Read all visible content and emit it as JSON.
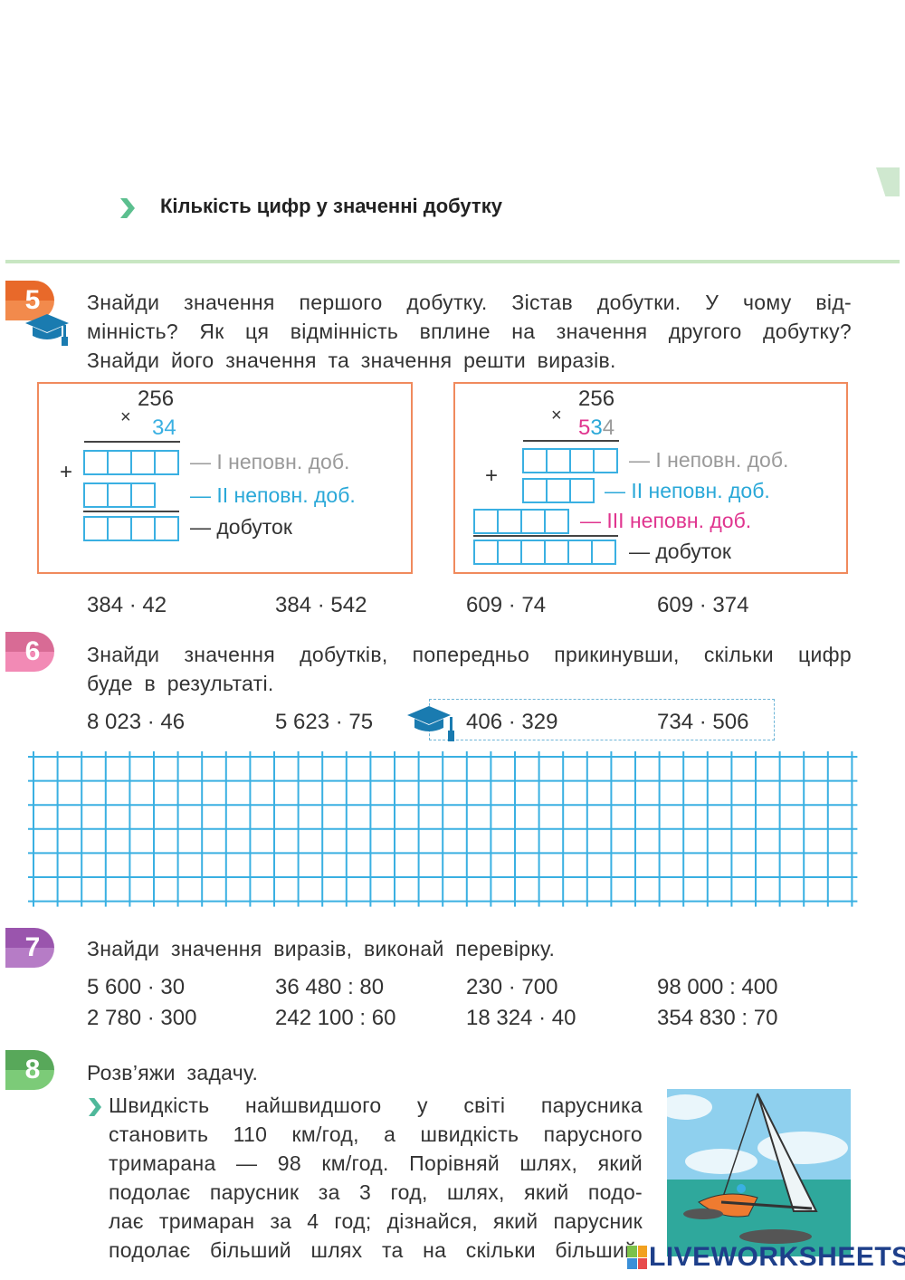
{
  "section_title": "Кількість цифр у значенні добутку",
  "colors": {
    "accent_green": "#5cbf8f",
    "grid": "#3ab0e2",
    "box_border": "#f08a5d",
    "pink": "#e0358f",
    "cyan": "#2aa8d8",
    "gray": "#9a9a9a"
  },
  "tasks": {
    "t5": {
      "number": "5",
      "badge_color": "#ef7b30",
      "text_lines": [
        "Знайди значення першого добутку. Зістав добутки. У чому від-",
        "мінність? Як ця відмінність вплине на значення другого добутку?",
        "Знайди його значення та значення решти виразів."
      ],
      "left": {
        "multiplicand": "256",
        "times": "×",
        "multiplier": "34",
        "plus": "+",
        "labels": [
          "— І неповн. доб.",
          "— ІІ неповн. доб.",
          "— добуток"
        ]
      },
      "right": {
        "multiplicand": "256",
        "times": "×",
        "multiplier_digits": [
          "5",
          "3",
          "4"
        ],
        "plus": "+",
        "labels": [
          "— І неповн. доб.",
          "— ІІ неповн. доб.",
          "— ІІІ неповн. доб.",
          "— добуток"
        ]
      },
      "expressions": [
        "384 · 42",
        "384 · 542",
        "609 · 74",
        "609 · 374"
      ]
    },
    "t6": {
      "number": "6",
      "badge_color": "#e8739e",
      "text_lines": [
        "Знайди значення добутків, попередньо прикинувши, скільки цифр",
        "буде в результаті."
      ],
      "expressions": [
        "8 023 · 46",
        "5 623 · 75",
        "406 · 329",
        "734 · 506"
      ]
    },
    "t7": {
      "number": "7",
      "badge_color": "#a566b4",
      "text": "Знайди значення виразів, виконай перевірку.",
      "rows": [
        [
          "5 600 · 30",
          "36 480 : 80",
          "230 · 700",
          "98 000 : 400"
        ],
        [
          "2 780 · 300",
          "242 100 : 60",
          "18 324 · 40",
          "354 830 : 70"
        ]
      ]
    },
    "t8": {
      "number": "8",
      "badge_color": "#6cbf6a",
      "text": "Розв’яжи задачу.",
      "problem_lines": [
        "Швидкість найшвидшого у світі парусника",
        "становить 110 км/год, а швидкість парусного",
        "тримарана — 98 км/год. Порівняй шлях, який",
        "подолає парусник за 3 год, шлях, який подо-",
        "лає тримаран за 4 год; дізнайся, який парусник",
        "подолає більший шлях та на скільки більший."
      ]
    }
  },
  "watermark": {
    "logo_letters": "LIVE",
    "text": "LIVEWORKSHEETS"
  }
}
